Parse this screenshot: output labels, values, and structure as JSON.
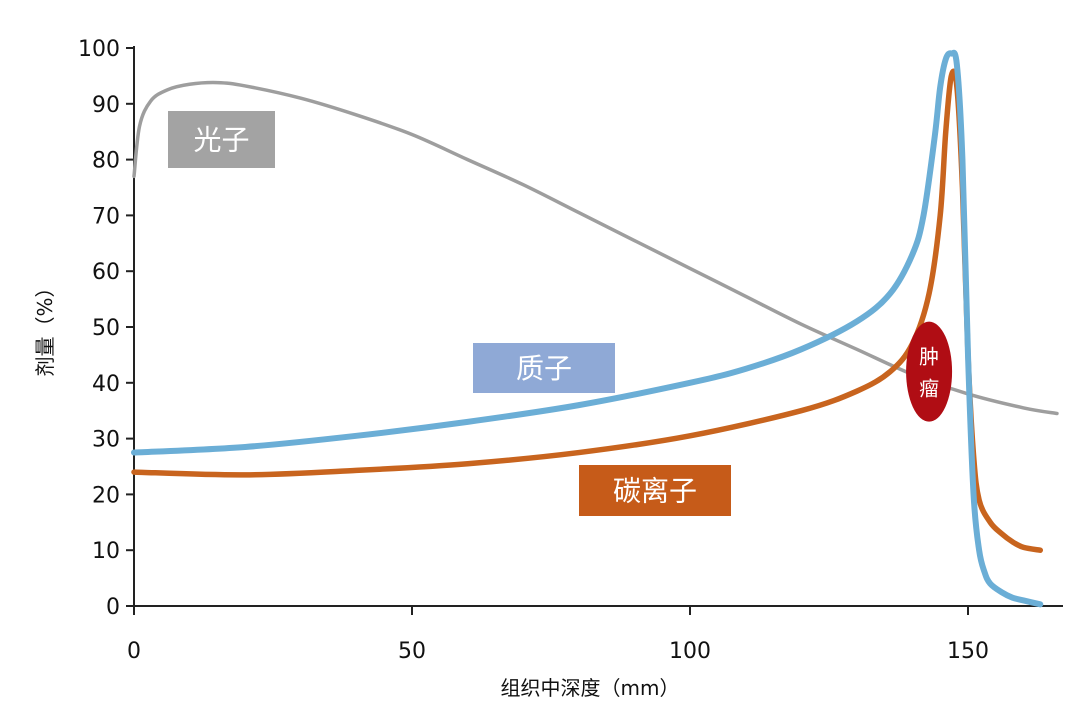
{
  "chart_data": {
    "type": "line",
    "title": "",
    "xlabel": "组织中深度（mm）",
    "ylabel": "剂量（%）",
    "xlim": [
      0,
      166
    ],
    "ylim": [
      0,
      100
    ],
    "x_ticks": [
      0,
      50,
      100,
      150
    ],
    "y_ticks": [
      0,
      10,
      20,
      30,
      40,
      50,
      60,
      70,
      80,
      90,
      100
    ],
    "grid": false,
    "series": [
      {
        "name": "光子",
        "color": "#9e9e9e",
        "label_bg": "#a3a3a3",
        "x": [
          0,
          1,
          3,
          6,
          10,
          15,
          20,
          30,
          40,
          50,
          60,
          70,
          80,
          90,
          100,
          110,
          120,
          130,
          140,
          150,
          160,
          166
        ],
        "y": [
          77,
          86,
          90.5,
          92.5,
          93.5,
          93.8,
          93.2,
          91,
          88,
          84.5,
          80,
          75.5,
          70.5,
          65.5,
          60.5,
          55.5,
          50.5,
          46,
          41.5,
          38,
          35.5,
          34.5
        ]
      },
      {
        "name": "质子",
        "color": "#6baed6",
        "label_bg": "#8fa9d6",
        "x": [
          0,
          20,
          40,
          60,
          80,
          100,
          110,
          120,
          130,
          136,
          140,
          142,
          144,
          145,
          146,
          147,
          148,
          149,
          150,
          151,
          152,
          153,
          154,
          156,
          158,
          160,
          163
        ],
        "y": [
          27.5,
          28.5,
          30.5,
          33,
          36,
          40,
          42.5,
          46,
          51,
          56,
          63,
          70,
          84,
          93,
          98,
          99,
          97,
          80,
          45,
          20,
          10,
          6,
          4,
          2.5,
          1.5,
          1,
          0.3
        ]
      },
      {
        "name": "碳离子",
        "color": "#c8641e",
        "label_bg": "#c65b19",
        "x": [
          0,
          20,
          40,
          60,
          80,
          100,
          120,
          130,
          136,
          140,
          143,
          145,
          146,
          147,
          148,
          149,
          150,
          151,
          152,
          154,
          156,
          158,
          160,
          163
        ],
        "y": [
          24,
          23.5,
          24.3,
          25.5,
          27.5,
          30.5,
          35,
          38.5,
          42,
          47,
          56,
          70,
          85,
          95,
          93,
          75,
          45,
          27,
          19,
          15,
          13,
          11.5,
          10.5,
          10
        ]
      }
    ],
    "annotations": [
      {
        "text_lines": [
          "肿",
          "瘤"
        ],
        "x": 143,
        "y": 42,
        "color": "#b00d14"
      }
    ]
  }
}
